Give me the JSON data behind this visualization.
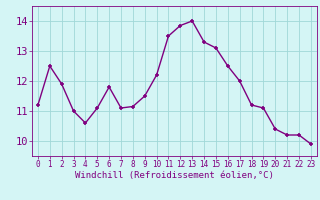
{
  "x": [
    0,
    1,
    2,
    3,
    4,
    5,
    6,
    7,
    8,
    9,
    10,
    11,
    12,
    13,
    14,
    15,
    16,
    17,
    18,
    19,
    20,
    21,
    22,
    23
  ],
  "y": [
    11.2,
    12.5,
    11.9,
    11.0,
    10.6,
    11.1,
    11.8,
    11.1,
    11.15,
    11.5,
    12.2,
    13.5,
    13.85,
    14.0,
    13.3,
    13.1,
    12.5,
    12.0,
    11.2,
    11.1,
    10.4,
    10.2,
    10.2,
    9.9
  ],
  "line_color": "#800080",
  "marker": "+",
  "bg_color": "#d4f5f5",
  "grid_color": "#a0d8d8",
  "xlabel": "Windchill (Refroidissement éolien,°C)",
  "ylim": [
    9.5,
    14.5
  ],
  "xlim": [
    -0.5,
    23.5
  ],
  "yticks": [
    10,
    11,
    12,
    13,
    14
  ],
  "xticks": [
    0,
    1,
    2,
    3,
    4,
    5,
    6,
    7,
    8,
    9,
    10,
    11,
    12,
    13,
    14,
    15,
    16,
    17,
    18,
    19,
    20,
    21,
    22,
    23
  ],
  "tick_color": "#800080",
  "tick_fontsize": 5.5,
  "xlabel_fontsize": 6.5,
  "ytick_fontsize": 7.5,
  "marker_size": 3.5,
  "linewidth": 1.0
}
